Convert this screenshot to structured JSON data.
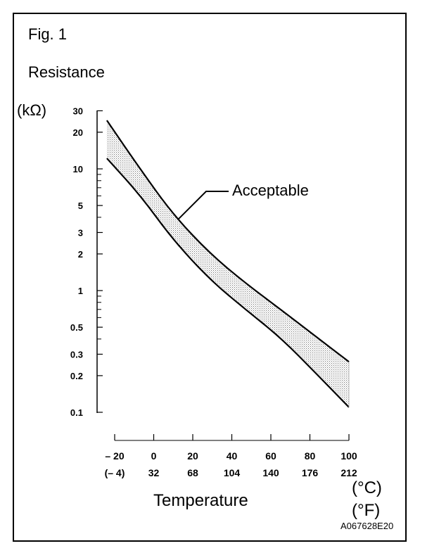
{
  "chart_data": {
    "type": "area",
    "title": "Fig. 1",
    "ylabel": "Resistance",
    "yunit": "(kΩ)",
    "xlabel": "Temperature",
    "xunit_c": "(°C)",
    "xunit_f": "(°F)",
    "yscale": "log",
    "ylim": [
      0.1,
      30
    ],
    "xlim": [
      -20,
      100
    ],
    "yticks": [
      {
        "v": 30,
        "l": "30"
      },
      {
        "v": 20,
        "l": "20"
      },
      {
        "v": 10,
        "l": "10"
      },
      {
        "v": 5,
        "l": "5"
      },
      {
        "v": 3,
        "l": "3"
      },
      {
        "v": 2,
        "l": "2"
      },
      {
        "v": 1,
        "l": "1"
      },
      {
        "v": 0.5,
        "l": "0.5"
      },
      {
        "v": 0.3,
        "l": "0.3"
      },
      {
        "v": 0.2,
        "l": "0.2"
      },
      {
        "v": 0.1,
        "l": "0.1"
      }
    ],
    "xticks_c": [
      "– 20",
      "0",
      "20",
      "40",
      "60",
      "80",
      "100"
    ],
    "xticks_f": [
      "(– 4)",
      "32",
      "68",
      "104",
      "140",
      "176",
      "212"
    ],
    "xtick_values": [
      -20,
      0,
      20,
      40,
      60,
      80,
      100
    ],
    "series": [
      {
        "name": "upper limit",
        "x": [
          -24,
          -7,
          10,
          29,
          47,
          65,
          83,
          100
        ],
        "y": [
          25,
          10,
          4.2,
          2.0,
          1.15,
          0.7,
          0.42,
          0.26
        ]
      },
      {
        "name": "lower limit",
        "x": [
          -24,
          -7,
          10,
          29,
          47,
          65,
          83,
          100
        ],
        "y": [
          12.2,
          6.1,
          2.6,
          1.22,
          0.7,
          0.41,
          0.21,
          0.11
        ]
      }
    ],
    "annotation": "Acceptable",
    "code": "A067628E20"
  }
}
